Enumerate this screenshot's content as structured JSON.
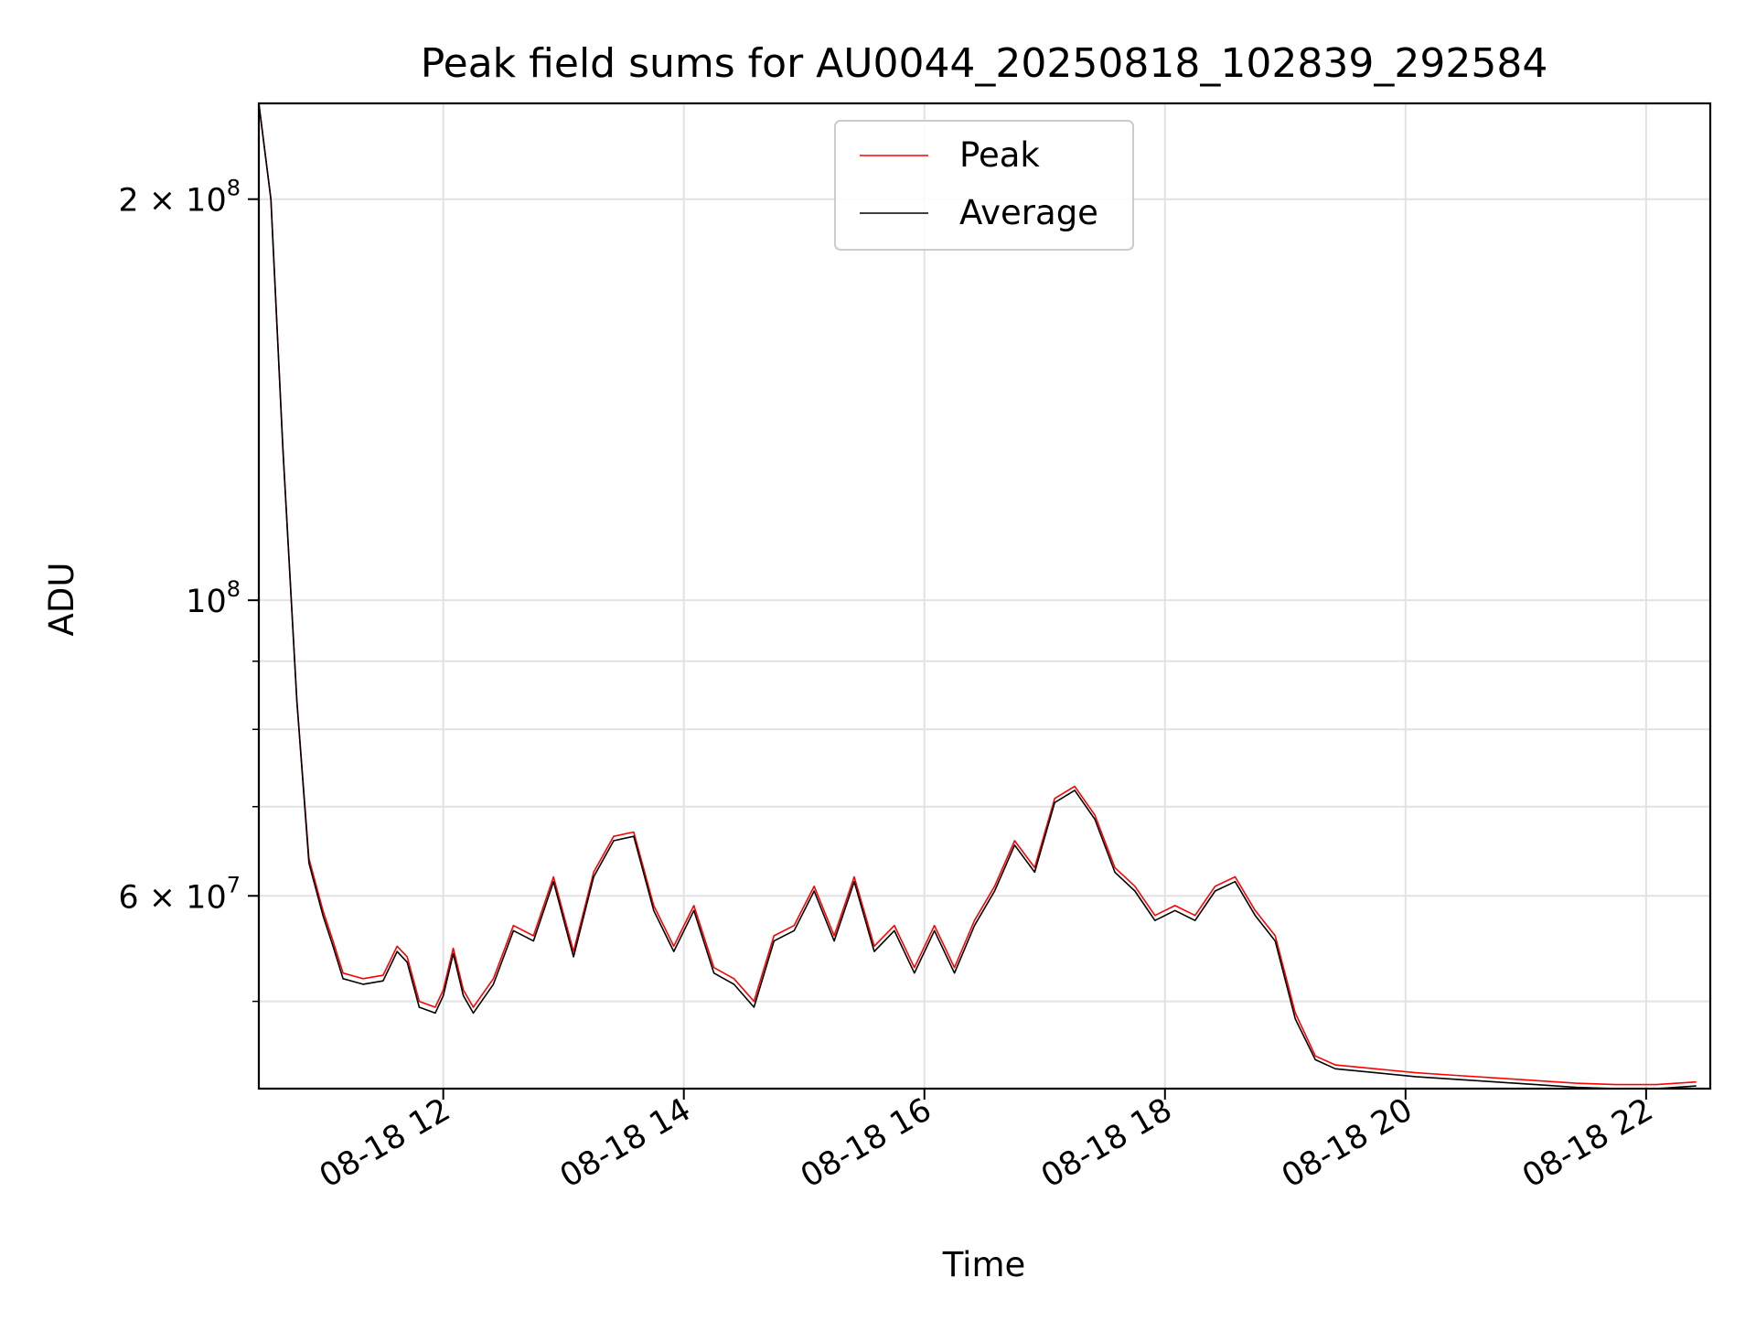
{
  "chart_data": {
    "type": "line",
    "title": "Peak field sums for AU0044_20250818_102839_292584",
    "xlabel": "Time",
    "ylabel": "ADU",
    "x_scale": "time",
    "y_scale": "log",
    "xlim": [
      "2025-08-18 10:28",
      "2025-08-18 22:32"
    ],
    "ylim": [
      43000000,
      236000000
    ],
    "x_ticks": [
      {
        "value": "2025-08-18 12:00",
        "label": "08-18 12"
      },
      {
        "value": "2025-08-18 14:00",
        "label": "08-18 14"
      },
      {
        "value": "2025-08-18 16:00",
        "label": "08-18 16"
      },
      {
        "value": "2025-08-18 18:00",
        "label": "08-18 18"
      },
      {
        "value": "2025-08-18 20:00",
        "label": "08-18 20"
      },
      {
        "value": "2025-08-18 22:00",
        "label": "08-18 22"
      }
    ],
    "y_major_ticks": [
      {
        "value": 60000000,
        "base": "6",
        "exp": "7",
        "mult": true
      },
      {
        "value": 100000000,
        "base": "10",
        "exp": "8",
        "mult": false
      },
      {
        "value": 200000000,
        "base": "2",
        "exp": "8",
        "mult": true
      }
    ],
    "y_minor_ticks": [
      50000000,
      70000000,
      80000000,
      90000000
    ],
    "grid": true,
    "legend_position": "upper-center",
    "series": [
      {
        "name": "Peak",
        "color": "#ff0000",
        "points": [
          [
            "2025-08-18 10:28",
            236000000
          ],
          [
            "2025-08-18 10:34",
            200000000
          ],
          [
            "2025-08-18 10:40",
            130000000
          ],
          [
            "2025-08-18 10:47",
            84000000
          ],
          [
            "2025-08-18 10:53",
            64000000
          ],
          [
            "2025-08-18 11:00",
            58500000
          ],
          [
            "2025-08-18 11:05",
            55500000
          ],
          [
            "2025-08-18 11:10",
            52500000
          ],
          [
            "2025-08-18 11:20",
            52000000
          ],
          [
            "2025-08-18 11:30",
            52300000
          ],
          [
            "2025-08-18 11:37",
            55000000
          ],
          [
            "2025-08-18 11:42",
            54000000
          ],
          [
            "2025-08-18 11:48",
            50000000
          ],
          [
            "2025-08-18 11:56",
            49500000
          ],
          [
            "2025-08-18 12:00",
            51000000
          ],
          [
            "2025-08-18 12:05",
            54800000
          ],
          [
            "2025-08-18 12:10",
            51000000
          ],
          [
            "2025-08-18 12:15",
            49500000
          ],
          [
            "2025-08-18 12:25",
            52000000
          ],
          [
            "2025-08-18 12:35",
            57000000
          ],
          [
            "2025-08-18 12:45",
            56000000
          ],
          [
            "2025-08-18 12:55",
            62000000
          ],
          [
            "2025-08-18 13:05",
            54500000
          ],
          [
            "2025-08-18 13:15",
            62500000
          ],
          [
            "2025-08-18 13:25",
            66500000
          ],
          [
            "2025-08-18 13:35",
            67000000
          ],
          [
            "2025-08-18 13:45",
            59000000
          ],
          [
            "2025-08-18 13:55",
            55000000
          ],
          [
            "2025-08-18 14:05",
            59000000
          ],
          [
            "2025-08-18 14:15",
            53000000
          ],
          [
            "2025-08-18 14:25",
            52000000
          ],
          [
            "2025-08-18 14:35",
            50000000
          ],
          [
            "2025-08-18 14:45",
            56000000
          ],
          [
            "2025-08-18 14:55",
            57000000
          ],
          [
            "2025-08-18 15:05",
            61000000
          ],
          [
            "2025-08-18 15:15",
            56000000
          ],
          [
            "2025-08-18 15:25",
            62000000
          ],
          [
            "2025-08-18 15:35",
            55000000
          ],
          [
            "2025-08-18 15:45",
            57000000
          ],
          [
            "2025-08-18 15:55",
            53000000
          ],
          [
            "2025-08-18 16:05",
            57000000
          ],
          [
            "2025-08-18 16:15",
            53000000
          ],
          [
            "2025-08-18 16:25",
            57500000
          ],
          [
            "2025-08-18 16:35",
            61000000
          ],
          [
            "2025-08-18 16:45",
            66000000
          ],
          [
            "2025-08-18 16:55",
            63000000
          ],
          [
            "2025-08-18 17:05",
            71000000
          ],
          [
            "2025-08-18 17:15",
            72500000
          ],
          [
            "2025-08-18 17:25",
            69000000
          ],
          [
            "2025-08-18 17:35",
            63000000
          ],
          [
            "2025-08-18 17:45",
            61000000
          ],
          [
            "2025-08-18 17:55",
            58000000
          ],
          [
            "2025-08-18 18:05",
            59000000
          ],
          [
            "2025-08-18 18:15",
            58000000
          ],
          [
            "2025-08-18 18:25",
            61000000
          ],
          [
            "2025-08-18 18:35",
            62000000
          ],
          [
            "2025-08-18 18:45",
            58500000
          ],
          [
            "2025-08-18 18:55",
            56000000
          ],
          [
            "2025-08-18 19:05",
            49000000
          ],
          [
            "2025-08-18 19:15",
            45500000
          ],
          [
            "2025-08-18 19:25",
            44800000
          ],
          [
            "2025-08-18 19:45",
            44500000
          ],
          [
            "2025-08-18 20:05",
            44200000
          ],
          [
            "2025-08-18 20:25",
            44000000
          ],
          [
            "2025-08-18 20:45",
            43800000
          ],
          [
            "2025-08-18 21:05",
            43600000
          ],
          [
            "2025-08-18 21:25",
            43400000
          ],
          [
            "2025-08-18 21:45",
            43300000
          ],
          [
            "2025-08-18 22:05",
            43300000
          ],
          [
            "2025-08-18 22:25",
            43500000
          ]
        ]
      },
      {
        "name": "Average",
        "color": "#000000",
        "points": [
          [
            "2025-08-18 10:28",
            236000000
          ],
          [
            "2025-08-18 10:34",
            200000000
          ],
          [
            "2025-08-18 10:40",
            130000000
          ],
          [
            "2025-08-18 10:47",
            84000000
          ],
          [
            "2025-08-18 10:53",
            63500000
          ],
          [
            "2025-08-18 11:00",
            58000000
          ],
          [
            "2025-08-18 11:05",
            55000000
          ],
          [
            "2025-08-18 11:10",
            52000000
          ],
          [
            "2025-08-18 11:20",
            51500000
          ],
          [
            "2025-08-18 11:30",
            51800000
          ],
          [
            "2025-08-18 11:37",
            54500000
          ],
          [
            "2025-08-18 11:42",
            53500000
          ],
          [
            "2025-08-18 11:48",
            49500000
          ],
          [
            "2025-08-18 11:56",
            49000000
          ],
          [
            "2025-08-18 12:00",
            50500000
          ],
          [
            "2025-08-18 12:05",
            54300000
          ],
          [
            "2025-08-18 12:10",
            50500000
          ],
          [
            "2025-08-18 12:15",
            49000000
          ],
          [
            "2025-08-18 12:25",
            51500000
          ],
          [
            "2025-08-18 12:35",
            56500000
          ],
          [
            "2025-08-18 12:45",
            55500000
          ],
          [
            "2025-08-18 12:55",
            61500000
          ],
          [
            "2025-08-18 13:05",
            54000000
          ],
          [
            "2025-08-18 13:15",
            62000000
          ],
          [
            "2025-08-18 13:25",
            66000000
          ],
          [
            "2025-08-18 13:35",
            66500000
          ],
          [
            "2025-08-18 13:45",
            58500000
          ],
          [
            "2025-08-18 13:55",
            54500000
          ],
          [
            "2025-08-18 14:05",
            58500000
          ],
          [
            "2025-08-18 14:15",
            52500000
          ],
          [
            "2025-08-18 14:25",
            51500000
          ],
          [
            "2025-08-18 14:35",
            49500000
          ],
          [
            "2025-08-18 14:45",
            55500000
          ],
          [
            "2025-08-18 14:55",
            56500000
          ],
          [
            "2025-08-18 15:05",
            60500000
          ],
          [
            "2025-08-18 15:15",
            55500000
          ],
          [
            "2025-08-18 15:25",
            61500000
          ],
          [
            "2025-08-18 15:35",
            54500000
          ],
          [
            "2025-08-18 15:45",
            56500000
          ],
          [
            "2025-08-18 15:55",
            52500000
          ],
          [
            "2025-08-18 16:05",
            56500000
          ],
          [
            "2025-08-18 16:15",
            52500000
          ],
          [
            "2025-08-18 16:25",
            57000000
          ],
          [
            "2025-08-18 16:35",
            60500000
          ],
          [
            "2025-08-18 16:45",
            65500000
          ],
          [
            "2025-08-18 16:55",
            62500000
          ],
          [
            "2025-08-18 17:05",
            70500000
          ],
          [
            "2025-08-18 17:15",
            72000000
          ],
          [
            "2025-08-18 17:25",
            68500000
          ],
          [
            "2025-08-18 17:35",
            62500000
          ],
          [
            "2025-08-18 17:45",
            60500000
          ],
          [
            "2025-08-18 17:55",
            57500000
          ],
          [
            "2025-08-18 18:05",
            58500000
          ],
          [
            "2025-08-18 18:15",
            57500000
          ],
          [
            "2025-08-18 18:25",
            60500000
          ],
          [
            "2025-08-18 18:35",
            61500000
          ],
          [
            "2025-08-18 18:45",
            58000000
          ],
          [
            "2025-08-18 18:55",
            55500000
          ],
          [
            "2025-08-18 19:05",
            48500000
          ],
          [
            "2025-08-18 19:15",
            45200000
          ],
          [
            "2025-08-18 19:25",
            44500000
          ],
          [
            "2025-08-18 19:45",
            44200000
          ],
          [
            "2025-08-18 20:05",
            43900000
          ],
          [
            "2025-08-18 20:25",
            43700000
          ],
          [
            "2025-08-18 20:45",
            43500000
          ],
          [
            "2025-08-18 21:05",
            43300000
          ],
          [
            "2025-08-18 21:25",
            43100000
          ],
          [
            "2025-08-18 21:45",
            43000000
          ],
          [
            "2025-08-18 22:05",
            43000000
          ],
          [
            "2025-08-18 22:25",
            43200000
          ]
        ]
      }
    ]
  }
}
